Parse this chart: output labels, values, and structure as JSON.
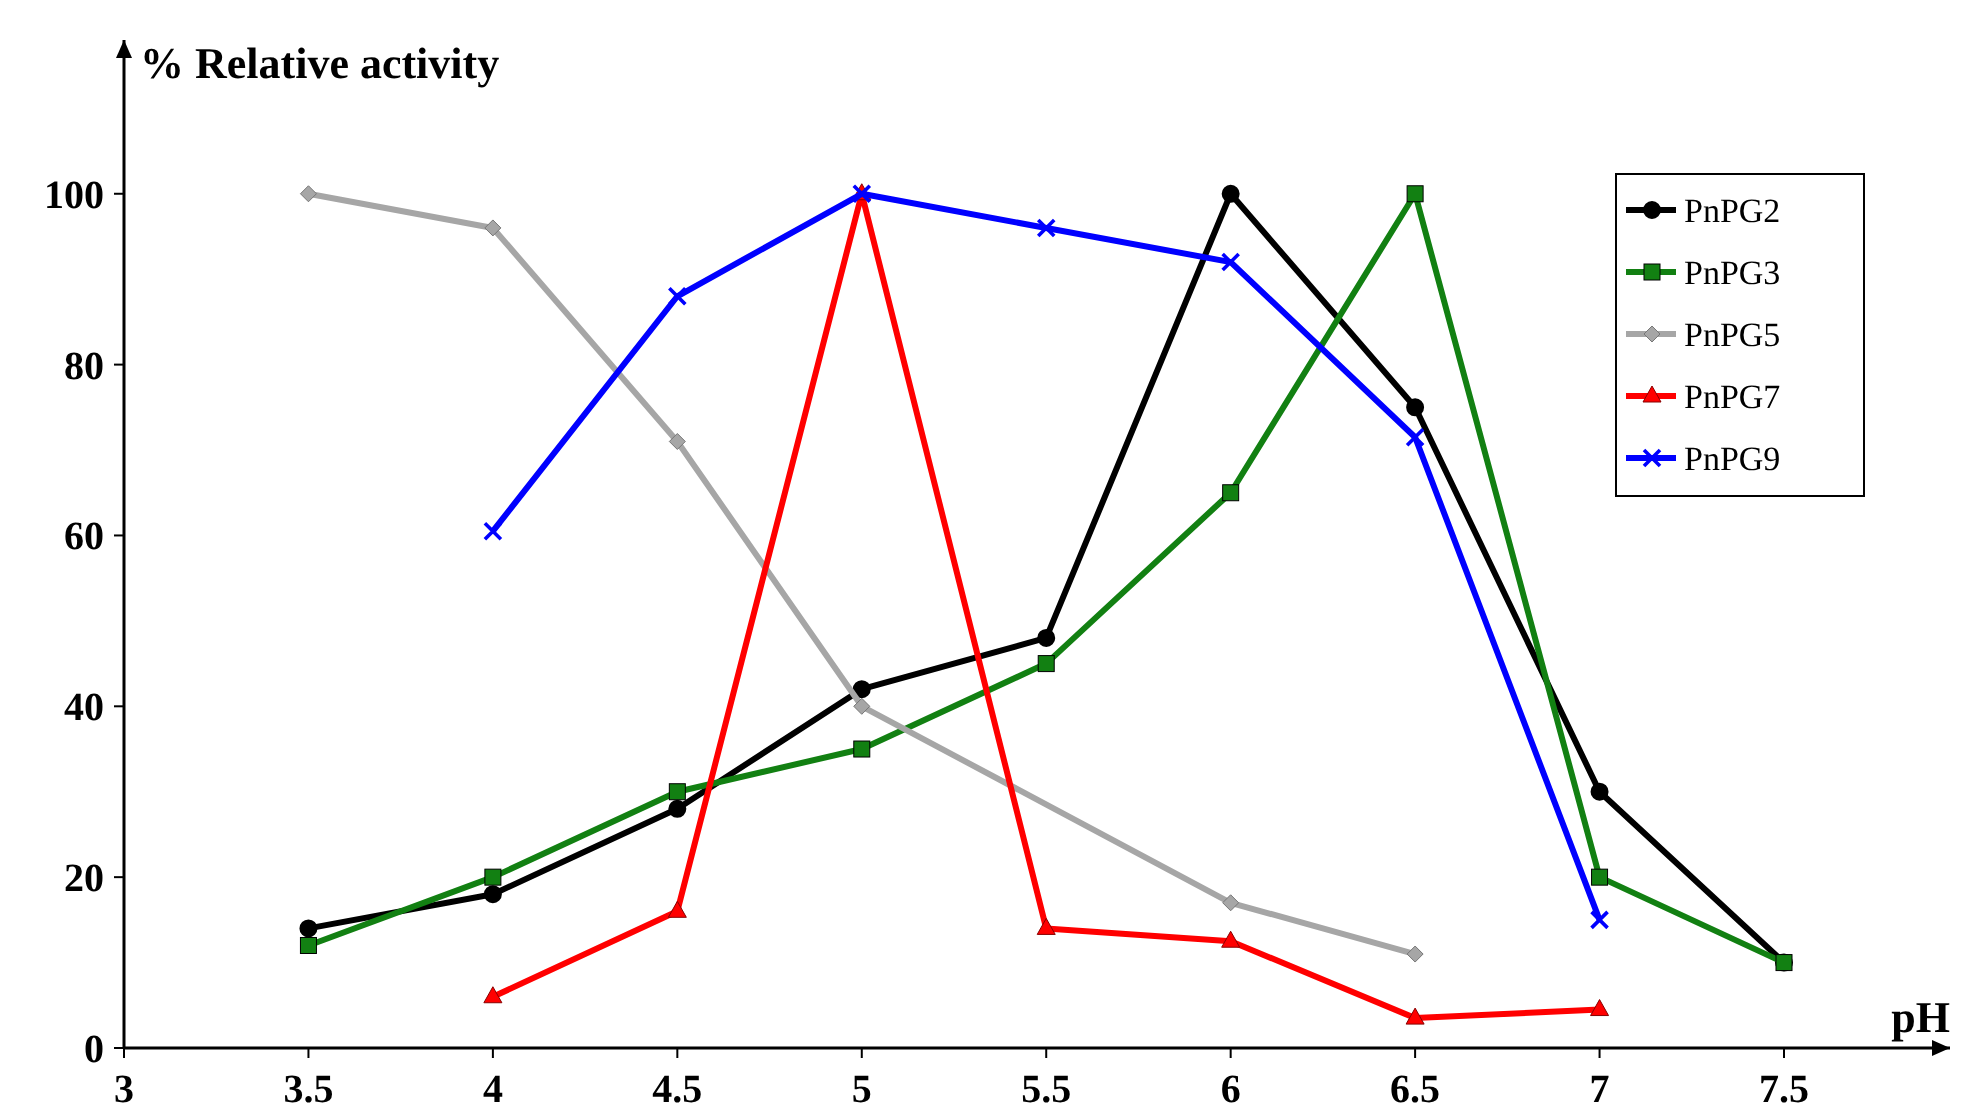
{
  "chart_data": {
    "type": "line",
    "ylabel": "% Relative activity",
    "xlabel": "pH",
    "x": [
      3.5,
      4,
      4.5,
      5,
      5.5,
      6,
      6.5,
      7,
      7.5
    ],
    "xlim": [
      3,
      7.95
    ],
    "xticks": [
      3,
      3.5,
      4,
      4.5,
      5,
      5.5,
      6,
      6.5,
      7,
      7.5
    ],
    "ylim": [
      0,
      118
    ],
    "yticks": [
      0,
      20,
      40,
      60,
      80,
      100
    ],
    "grid": false,
    "legend": "top right",
    "series": [
      {
        "name": "PnPG2",
        "color": "#000000",
        "marker": "circle",
        "values": [
          14,
          18,
          28,
          42,
          48,
          100,
          75,
          30,
          10
        ]
      },
      {
        "name": "PnPG3",
        "color": "#128012",
        "marker": "square",
        "values": [
          12,
          20,
          30,
          35,
          45,
          65,
          100,
          20,
          10
        ]
      },
      {
        "name": "PnPG5",
        "color": "#a6a6a6",
        "marker": "diamond",
        "x": [
          3.5,
          4,
          4.5,
          5,
          6,
          6.5
        ],
        "values": [
          100,
          96,
          71,
          40,
          17,
          11
        ]
      },
      {
        "name": "PnPG7",
        "color": "#ff0000",
        "marker": "triangle",
        "x": [
          4,
          4.5,
          5,
          5.5,
          6,
          6.5,
          7
        ],
        "values": [
          6,
          16,
          100,
          14,
          12.5,
          3.5,
          4.5
        ]
      },
      {
        "name": "PnPG9",
        "color": "#0000ff",
        "marker": "cross",
        "x": [
          4,
          4.5,
          5,
          5.5,
          6,
          6.5,
          7
        ],
        "values": [
          60.5,
          88,
          100,
          96,
          92,
          71.5,
          15
        ]
      }
    ]
  }
}
